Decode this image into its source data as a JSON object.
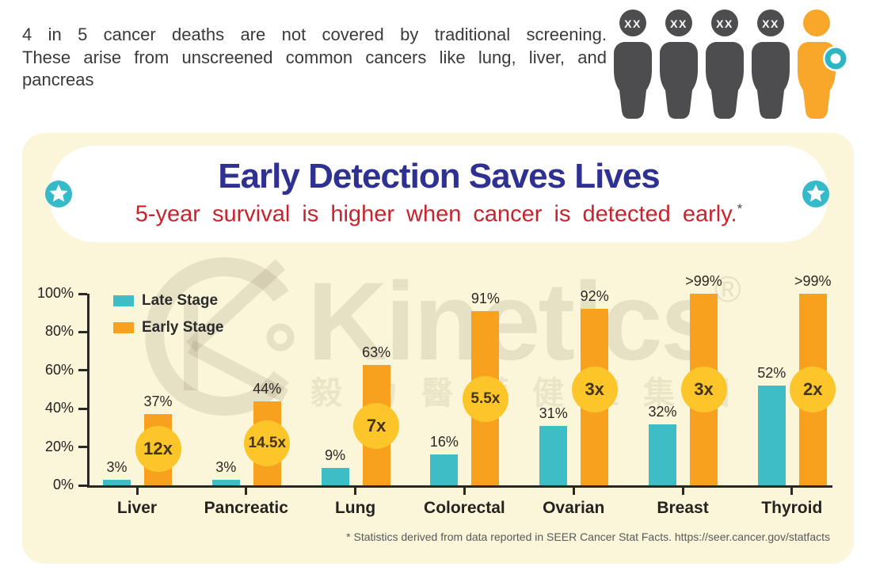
{
  "header": {
    "lines": [
      "4 in 5 cancer deaths are not covered by traditional screening.",
      "These arise from unscreened common cancers like lung, liver, and",
      "pancreas"
    ],
    "people": {
      "head_label": "XX"
    }
  },
  "banner": {
    "title": "Early Detection Saves Lives",
    "subtitle": "5-year survival is higher when cancer is detected early.",
    "footnote_marker": "*"
  },
  "watermark": {
    "brand": "Kinetics",
    "registered": "®",
    "chinese": "毅力醫護健康集團"
  },
  "footnote": "* Statistics derived from data reported in SEER Cancer Stat Facts. https://seer.cancer.gov/statfacts",
  "chart_data": {
    "type": "bar",
    "title": "Early Detection Saves Lives",
    "subtitle": "5-year survival is higher when cancer is detected early.*",
    "categories": [
      "Liver",
      "Pancreatic",
      "Lung",
      "Colorectal",
      "Ovarian",
      "Breast",
      "Thyroid"
    ],
    "series": [
      {
        "name": "Late Stage",
        "color": "#3FBDC7",
        "values": [
          3,
          3,
          9,
          16,
          31,
          32,
          52
        ],
        "labels": [
          "3%",
          "3%",
          "9%",
          "16%",
          "31%",
          "32%",
          "52%"
        ]
      },
      {
        "name": "Early Stage",
        "color": "#F8A11E",
        "values": [
          37,
          44,
          63,
          91,
          92,
          100,
          100
        ],
        "labels": [
          "37%",
          "44%",
          "63%",
          "91%",
          "92%",
          ">99%",
          ">99%"
        ]
      }
    ],
    "multipliers": [
      {
        "label": "12x",
        "center_pct": 19
      },
      {
        "label": "14.5x",
        "center_pct": 22
      },
      {
        "label": "7x",
        "center_pct": 31
      },
      {
        "label": "5.5x",
        "center_pct": 45
      },
      {
        "label": "3x",
        "center_pct": 50
      },
      {
        "label": "3x",
        "center_pct": 50
      },
      {
        "label": "2x",
        "center_pct": 50
      }
    ],
    "y_ticks": [
      "0%",
      "20%",
      "40%",
      "60%",
      "80%",
      "100%"
    ],
    "ylim": [
      0,
      100
    ],
    "grid": false,
    "legend_position": "top-left"
  },
  "colors": {
    "panel_bg": "#FBF6D9",
    "title_navy": "#2E3192",
    "subtitle_red": "#C8232C",
    "late_teal": "#3FBDC7",
    "early_orange": "#F8A11E",
    "multiplier_yellow": "#FCC62B",
    "multiplier_text": "#443414",
    "person_gray": "#4D4D4F",
    "person_orange": "#F9A72B",
    "badge_teal": "#2FB4C4",
    "star_teal": "#35BAC9",
    "axis": "#2B2724"
  }
}
